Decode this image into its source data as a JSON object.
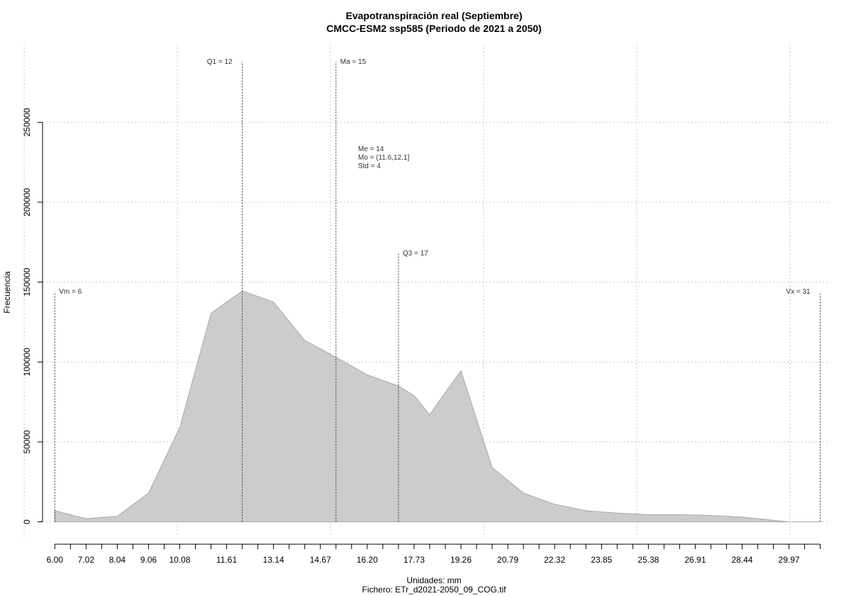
{
  "chart_data": {
    "type": "area",
    "title": "Evapotranspiración real (Septiembre)",
    "subtitle": "CMCC-ESM2 ssp585 (Periodo de 2021 a 2050)",
    "xlabel": "Unidades: mm",
    "ylabel": "Frecuencia",
    "footer": "Fichero: ETr_d2021-2050_09_COG.tif",
    "xlim": [
      5.6,
      31.3
    ],
    "ylim": [
      -10000,
      299000
    ],
    "grid": true,
    "x_ticks": [
      6.0,
      7.02,
      8.04,
      9.06,
      10.08,
      11.61,
      13.14,
      14.67,
      16.2,
      17.73,
      19.26,
      20.79,
      22.32,
      23.85,
      25.38,
      26.91,
      28.44,
      29.97
    ],
    "x_tick_labels": [
      "6.00",
      "7.02",
      "8.04",
      "9.06",
      "10.08",
      "11.61",
      "13.14",
      "14.67",
      "16.20",
      "17.73",
      "19.26",
      "20.79",
      "22.32",
      "23.85",
      "25.38",
      "26.91",
      "28.44",
      "29.97"
    ],
    "x_minor_ticks": [
      6.0,
      6.51,
      7.02,
      7.53,
      8.04,
      8.55,
      9.06,
      9.57,
      10.08,
      10.59,
      11.1,
      11.61,
      12.12,
      12.63,
      13.14,
      13.65,
      14.16,
      14.67,
      15.18,
      15.69,
      16.2,
      16.71,
      17.22,
      17.73,
      18.24,
      18.75,
      19.26,
      19.77,
      20.28,
      20.79,
      21.3,
      21.81,
      22.32,
      22.83,
      23.34,
      23.85,
      24.36,
      24.87,
      25.38,
      25.89,
      26.4,
      26.91,
      27.42,
      27.93,
      28.44,
      28.95,
      29.46,
      29.97,
      30.48,
      30.99
    ],
    "x_grid": [
      5.0,
      10.0,
      15.0,
      20.0,
      25.0,
      30.0
    ],
    "y_ticks": [
      0,
      50000,
      100000,
      150000,
      200000,
      250000
    ],
    "y_tick_labels": [
      "0",
      "50000",
      "100000",
      "150000",
      "200000",
      "250000"
    ],
    "series": [
      {
        "x": [
          6.0,
          7.02,
          8.04,
          9.06,
          10.08,
          11.1,
          12.12,
          13.14,
          14.16,
          15.18,
          16.2,
          17.22,
          17.73,
          18.24,
          18.75,
          19.26,
          20.28,
          21.3,
          22.32,
          23.34,
          24.36,
          25.38,
          26.4,
          27.42,
          28.44,
          29.46,
          29.97,
          30.99
        ],
        "y": [
          7000,
          2000,
          3500,
          18000,
          59000,
          130500,
          144500,
          137500,
          113500,
          103000,
          92000,
          85000,
          79000,
          67000,
          81000,
          94500,
          34000,
          18000,
          11000,
          7000,
          5500,
          4500,
          4500,
          4000,
          3000,
          1000,
          0,
          0
        ]
      }
    ],
    "markers": [
      {
        "label": "Vm = 6",
        "x": 6.0,
        "y_top": 144000,
        "label_side": "right"
      },
      {
        "label": "Q1 = 12",
        "x": 12.12,
        "y_top": 288000,
        "label_side": "left"
      },
      {
        "label": "Ma = 15",
        "x": 15.18,
        "y_top": 288000,
        "label_side": "right"
      },
      {
        "label": "Q3 = 17",
        "x": 17.22,
        "y_top": 168000,
        "label_side": "right"
      },
      {
        "label": "Vx = 31",
        "x": 30.99,
        "y_top": 144000,
        "label_side": "left"
      }
    ],
    "stats_text": [
      "Me = 14",
      "Mo = (11.6,12.1]",
      "Std = 4"
    ],
    "stats_position": {
      "x": 15.9,
      "y": 232000
    }
  }
}
